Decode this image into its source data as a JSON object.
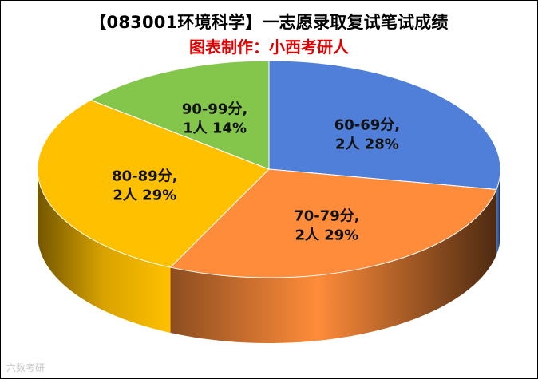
{
  "chart_data": {
    "type": "pie",
    "title": "【083001环境科学】一志愿录取复试笔试成绩",
    "subtitle": "图表制作：小西考研人",
    "slices": [
      {
        "label_range": "60-69分,",
        "label_count": "2人 28%",
        "value": 28,
        "color": "#4f7fd8"
      },
      {
        "label_range": "70-79分,",
        "label_count": "2人 29%",
        "value": 29,
        "color": "#ff8c3a"
      },
      {
        "label_range": "80-89分,",
        "label_count": "2人 29%",
        "value": 29,
        "color": "#ffc000"
      },
      {
        "label_range": "90-99分,",
        "label_count": "1人 14%",
        "value": 14,
        "color": "#84c54b"
      }
    ]
  },
  "colors": {
    "subtitle": "#e00000",
    "title": "#000000"
  },
  "watermark": "六数考研"
}
